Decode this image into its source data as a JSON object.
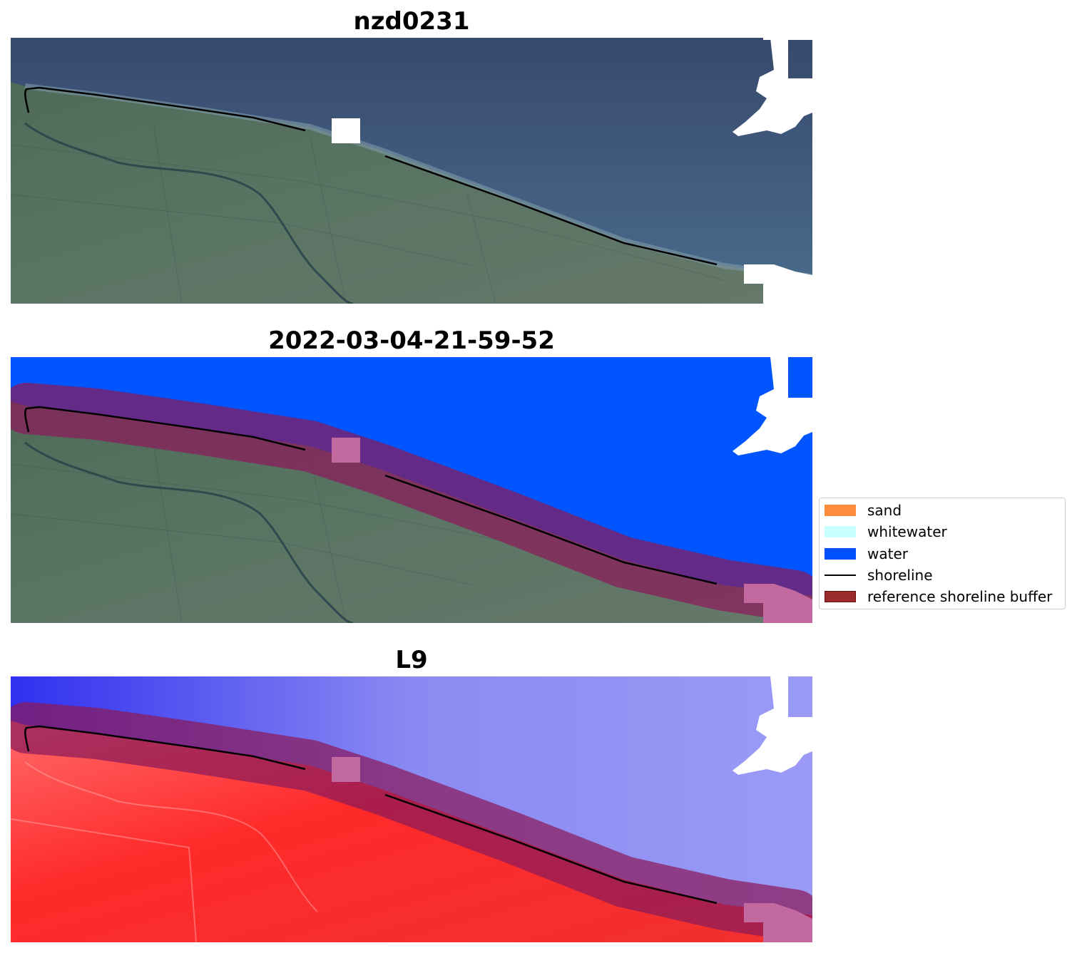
{
  "panels": [
    {
      "title": "nzd0231"
    },
    {
      "title": "2022-03-04-21-59-52"
    },
    {
      "title": "L9"
    }
  ],
  "legend": {
    "items": [
      {
        "label": "sand",
        "color": "#ff8c3c",
        "kind": "patch"
      },
      {
        "label": "whitewater",
        "color": "#c8ffff",
        "kind": "patch"
      },
      {
        "label": "water",
        "color": "#0050ff",
        "kind": "patch"
      },
      {
        "label": "shoreline",
        "color": "#000000",
        "kind": "line"
      },
      {
        "label": "reference shoreline buffer",
        "color": "#9b2a2a",
        "kind": "patch"
      }
    ]
  },
  "colors": {
    "sea": "#3f5a86",
    "land": "#55715f",
    "water_class": "#0055ff",
    "buffer": "#8b1a5a",
    "cloud": "#ffffff",
    "index_positive": "#ff2a2a",
    "index_negative": "#6e6ef0"
  }
}
